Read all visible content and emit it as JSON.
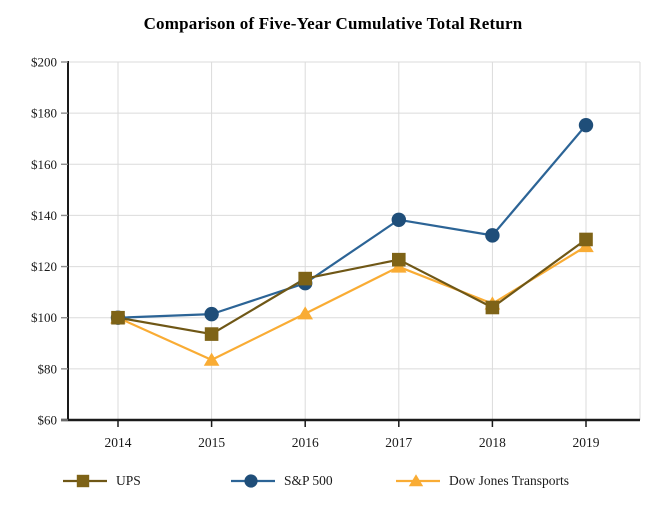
{
  "chart_data": {
    "type": "line",
    "title": "Comparison of Five-Year Cumulative Total Return",
    "x": [
      "2014",
      "2015",
      "2016",
      "2017",
      "2018",
      "2019"
    ],
    "series": [
      {
        "name": "S&P 500",
        "marker": "circle",
        "color": "#1F4E79",
        "line_color": "#2C6496",
        "values": [
          100.0,
          101.4,
          113.5,
          138.3,
          132.2,
          175.3
        ]
      },
      {
        "name": "Dow Jones Transports",
        "marker": "triangle",
        "color": "#F9AC34",
        "line_color": "#F9AC34",
        "values": [
          100.0,
          83.5,
          101.6,
          119.9,
          105.5,
          127.9
        ]
      },
      {
        "name": "UPS",
        "marker": "square",
        "color": "#7E6317",
        "line_color": "#6F5716",
        "values": [
          100.0,
          93.6,
          115.3,
          122.7,
          104.0,
          130.6
        ]
      }
    ],
    "legend_order": [
      "UPS",
      "S&P 500",
      "Dow Jones Transports"
    ],
    "ylim": [
      60,
      200
    ],
    "ytick_step": 20,
    "ytick_prefix": "$",
    "xlabel": "",
    "ylabel": "",
    "grid": true,
    "legend_position": "bottom",
    "colors": {
      "grid": "#DBDBDB",
      "axis": "#1A1A1A",
      "tick": "#8C8C8C",
      "text": "#1A1A1A",
      "background": "#FFFFFF"
    }
  }
}
